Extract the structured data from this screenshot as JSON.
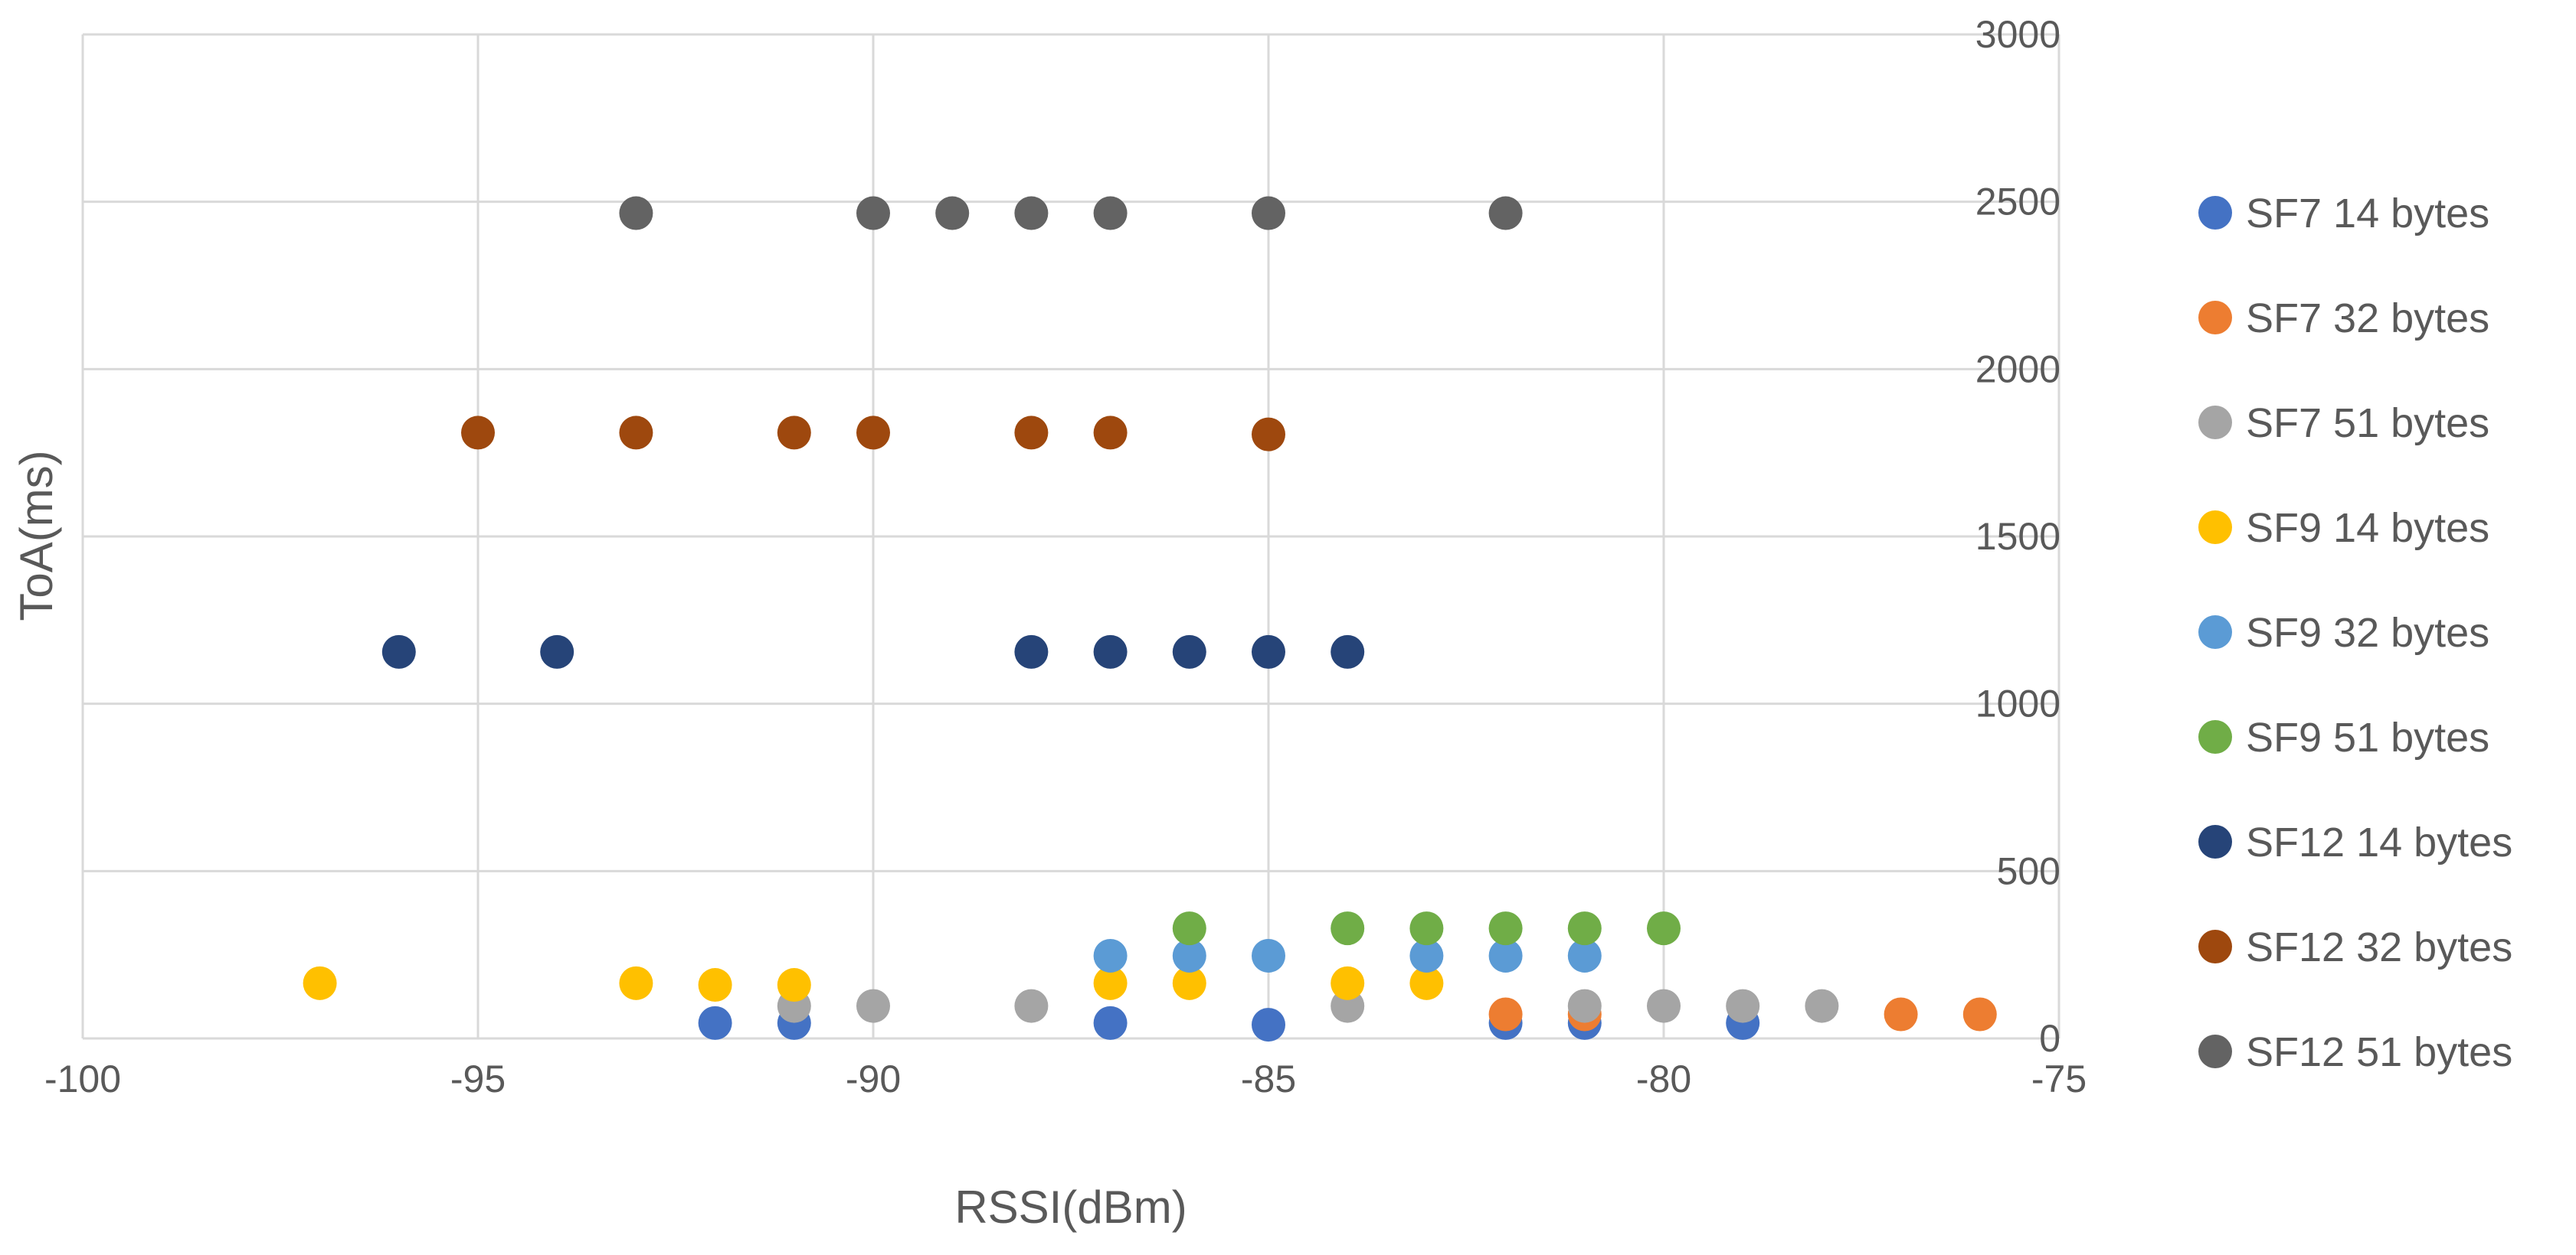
{
  "chart_data": {
    "type": "scatter",
    "title": "",
    "xlabel": "RSSI(dBm)",
    "ylabel": "ToA(ms)",
    "xlim": [
      -100,
      -75
    ],
    "ylim": [
      0,
      3000
    ],
    "x_ticks": [
      -100,
      -95,
      -90,
      -85,
      -80,
      -75
    ],
    "y_ticks": [
      0,
      500,
      1000,
      1500,
      2000,
      2500,
      3000
    ],
    "y_axis_position": "right",
    "grid": true,
    "legend_position": "right",
    "series": [
      {
        "name": "SF7 14 bytes",
        "color": "#4472c4",
        "points": [
          [
            -92,
            46
          ],
          [
            -91,
            46
          ],
          [
            -87,
            46
          ],
          [
            -85,
            41
          ],
          [
            -82,
            46
          ],
          [
            -81,
            46
          ],
          [
            -79,
            46
          ]
        ]
      },
      {
        "name": "SF7 32 bytes",
        "color": "#ed7d31",
        "points": [
          [
            -82,
            72
          ],
          [
            -81,
            72
          ],
          [
            -77,
            72
          ],
          [
            -76,
            72
          ]
        ]
      },
      {
        "name": "SF7 51 bytes",
        "color": "#a5a5a5",
        "points": [
          [
            -91,
            97
          ],
          [
            -90,
            97
          ],
          [
            -88,
            97
          ],
          [
            -84,
            97
          ],
          [
            -81,
            97
          ],
          [
            -80,
            97
          ],
          [
            -79,
            97
          ],
          [
            -78,
            97
          ]
        ]
      },
      {
        "name": "SF9 14 bytes",
        "color": "#ffc000",
        "points": [
          [
            -97,
            165
          ],
          [
            -93,
            165
          ],
          [
            -92,
            160
          ],
          [
            -91,
            160
          ],
          [
            -87,
            165
          ],
          [
            -86,
            165
          ],
          [
            -84,
            165
          ],
          [
            -83,
            165
          ]
        ]
      },
      {
        "name": "SF9 32 bytes",
        "color": "#5b9bd5",
        "points": [
          [
            -87,
            247
          ],
          [
            -86,
            247
          ],
          [
            -85,
            247
          ],
          [
            -83,
            247
          ],
          [
            -82,
            247
          ],
          [
            -81,
            247
          ]
        ]
      },
      {
        "name": "SF9 51 bytes",
        "color": "#70ad47",
        "points": [
          [
            -86,
            329
          ],
          [
            -84,
            329
          ],
          [
            -83,
            329
          ],
          [
            -82,
            329
          ],
          [
            -81,
            329
          ],
          [
            -80,
            329
          ]
        ]
      },
      {
        "name": "SF12 14 bytes",
        "color": "#264478",
        "points": [
          [
            -96,
            1155
          ],
          [
            -94,
            1155
          ],
          [
            -88,
            1155
          ],
          [
            -87,
            1155
          ],
          [
            -86,
            1155
          ],
          [
            -85,
            1155
          ],
          [
            -84,
            1155
          ]
        ]
      },
      {
        "name": "SF12 32 bytes",
        "color": "#9e480e",
        "points": [
          [
            -95,
            1810
          ],
          [
            -93,
            1810
          ],
          [
            -91,
            1810
          ],
          [
            -90,
            1810
          ],
          [
            -88,
            1810
          ],
          [
            -87,
            1810
          ],
          [
            -85,
            1805
          ]
        ]
      },
      {
        "name": "SF12 51 bytes",
        "color": "#636363",
        "points": [
          [
            -93,
            2466
          ],
          [
            -90,
            2466
          ],
          [
            -89,
            2466
          ],
          [
            -88,
            2466
          ],
          [
            -87,
            2466
          ],
          [
            -85,
            2466
          ],
          [
            -82,
            2466
          ]
        ]
      }
    ]
  }
}
